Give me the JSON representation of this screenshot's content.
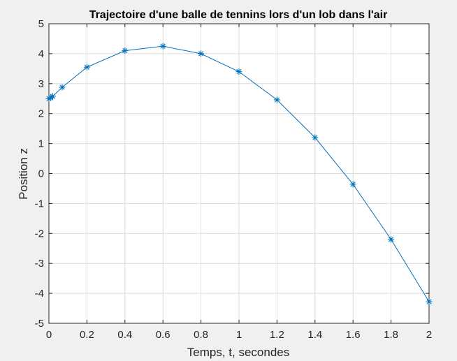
{
  "chart_data": {
    "type": "line",
    "title": "Trajectoire d'une balle de tennins lors d'un lob dans l'air",
    "xlabel": "Temps, t, secondes",
    "ylabel": "Position z",
    "xlim": [
      0,
      2
    ],
    "ylim": [
      -5,
      5
    ],
    "xticks": [
      "0",
      "0.2",
      "0.4",
      "0.6",
      "0.8",
      "1",
      "1.2",
      "1.4",
      "1.6",
      "1.8",
      "2"
    ],
    "yticks": [
      "-5",
      "-4",
      "-3",
      "-2",
      "-1",
      "0",
      "1",
      "2",
      "3",
      "4",
      "5"
    ],
    "grid": true,
    "marker": "asterisk",
    "series": [
      {
        "color": "#0072bd",
        "x": [
          0,
          0.01,
          0.02,
          0.07,
          0.2,
          0.4,
          0.6,
          0.8,
          1.0,
          1.2,
          1.4,
          1.6,
          1.8,
          2.0
        ],
        "y": [
          2.5,
          2.53,
          2.58,
          2.88,
          3.55,
          4.1,
          4.25,
          4.0,
          3.4,
          2.46,
          1.2,
          -0.36,
          -2.2,
          -4.28
        ]
      }
    ]
  }
}
